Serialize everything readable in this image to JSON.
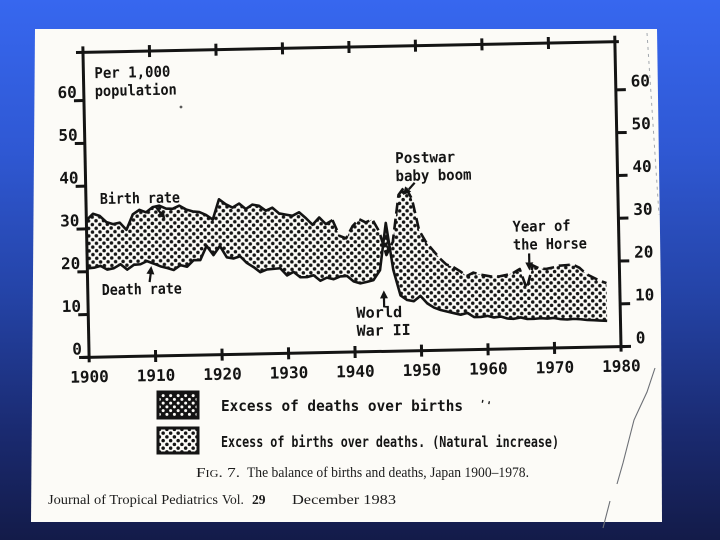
{
  "slide": {
    "background_top_color": "#3767ef",
    "background_bottom_color": "#131b49",
    "paper_color": "#fcfbf7",
    "ink_color": "#141414"
  },
  "figure": {
    "caption": {
      "fig_label": "Fig. 7.",
      "text": "The balance of births and deaths, Japan 1900–1978."
    },
    "footer": {
      "journal": "Journal of Tropical Pediatrics",
      "vol_label": "Vol.",
      "vol_number": "29",
      "date": "December 1983"
    }
  },
  "legend": {
    "items": [
      {
        "pattern": "dark-dots",
        "label": "Excess of deaths over births"
      },
      {
        "pattern": "light-dots",
        "label": "Excess of births over deaths. (Natural increase)"
      }
    ],
    "stray_mark": "''"
  },
  "chart_data": {
    "type": "area",
    "title": "Per 1,000 population",
    "title_lines": [
      "Per 1,000",
      "population"
    ],
    "x_ticks": [
      1900,
      1910,
      1920,
      1930,
      1940,
      1950,
      1960,
      1970,
      1980
    ],
    "y_ticks": [
      0,
      10,
      20,
      30,
      40,
      50,
      60
    ],
    "xlim": [
      1900,
      1980
    ],
    "ylim": [
      0,
      70
    ],
    "grid": false,
    "legend_position": "below",
    "birth_line_dashed_from": 1937,
    "x": [
      1900,
      1901,
      1902,
      1903,
      1904,
      1905,
      1906,
      1907,
      1908,
      1909,
      1910,
      1911,
      1912,
      1913,
      1914,
      1915,
      1916,
      1917,
      1918,
      1919,
      1920,
      1921,
      1922,
      1923,
      1924,
      1925,
      1926,
      1927,
      1928,
      1929,
      1930,
      1931,
      1932,
      1933,
      1934,
      1935,
      1936,
      1937,
      1938,
      1939,
      1940,
      1941,
      1942,
      1943,
      1944,
      1945,
      1946,
      1947,
      1948,
      1949,
      1950,
      1951,
      1952,
      1953,
      1954,
      1955,
      1956,
      1957,
      1958,
      1959,
      1960,
      1961,
      1962,
      1963,
      1964,
      1965,
      1966,
      1967,
      1968,
      1969,
      1970,
      1971,
      1972,
      1973,
      1974,
      1975,
      1976,
      1977,
      1978
    ],
    "series": [
      {
        "name": "Birth rate",
        "line_style": "hand-drawn, dashed after 1937",
        "values": [
          32,
          33.5,
          33,
          31.5,
          31,
          31.3,
          29.6,
          33.2,
          34.2,
          33.6,
          34.8,
          35.1,
          34.4,
          34.3,
          35,
          34.1,
          33.6,
          33.4,
          32.7,
          31.6,
          36.3,
          35.1,
          34.3,
          35.2,
          33.9,
          34.9,
          34.6,
          33.4,
          34.1,
          32.7,
          32.4,
          32.1,
          32.9,
          31.5,
          29.9,
          31.6,
          30,
          30.9,
          27.2,
          26.6,
          29.4,
          31,
          30.2,
          30.9,
          28,
          22.5,
          25.5,
          36.5,
          38.5,
          35.5,
          28.1,
          25.3,
          23.4,
          21.5,
          20,
          19.4,
          18.4,
          17.2,
          18,
          17.5,
          17.2,
          16.9,
          17,
          17.3,
          17.7,
          18.6,
          14,
          19.4,
          18.6,
          18.5,
          18.8,
          19.2,
          19.3,
          19.4,
          18.6,
          17.1,
          16.3,
          15.5,
          14.9
        ]
      },
      {
        "name": "Death rate",
        "line_style": "solid",
        "values": [
          20.8,
          20.9,
          21.3,
          20.4,
          20.7,
          21.6,
          20.3,
          21.4,
          21.5,
          22.2,
          21.6,
          20.9,
          20.5,
          20,
          21.1,
          20.7,
          22.2,
          22.2,
          25.5,
          23.3,
          25.4,
          22.7,
          22.4,
          22.9,
          21.3,
          20.3,
          19.1,
          19.7,
          19.8,
          19.9,
          18.2,
          19,
          17.7,
          17.7,
          18.1,
          16.8,
          17.5,
          17.1,
          17.7,
          17.8,
          16.5,
          16,
          16.3,
          16.7,
          19,
          30,
          19,
          13,
          11.9,
          11.6,
          12.8,
          11,
          10,
          9.4,
          9,
          8.6,
          8.2,
          8.6,
          7.6,
          7.6,
          7.8,
          7.4,
          7.6,
          7.1,
          7,
          7.3,
          6.9,
          6.9,
          7,
          6.9,
          7,
          6.7,
          6.6,
          6.7,
          6.6,
          6.4,
          6.3,
          6.2,
          6.1
        ]
      }
    ],
    "areas": [
      {
        "fill": "light-dots",
        "where": "birth > death",
        "meaning": "Excess of births over deaths (Natural increase)"
      },
      {
        "fill": "dark-dots",
        "where": "death > birth (c. 1944–1946)",
        "meaning": "Excess of deaths over births"
      }
    ],
    "annotations": [
      {
        "id": "birth-rate",
        "lines": [
          "Birth rate"
        ]
      },
      {
        "id": "death-rate",
        "lines": [
          "Death rate"
        ]
      },
      {
        "id": "postwar",
        "lines": [
          "Postwar",
          "baby boom"
        ]
      },
      {
        "id": "ww2",
        "lines": [
          "World",
          "War II"
        ]
      },
      {
        "id": "horse",
        "lines": [
          "Year of",
          "the Horse"
        ]
      }
    ]
  }
}
